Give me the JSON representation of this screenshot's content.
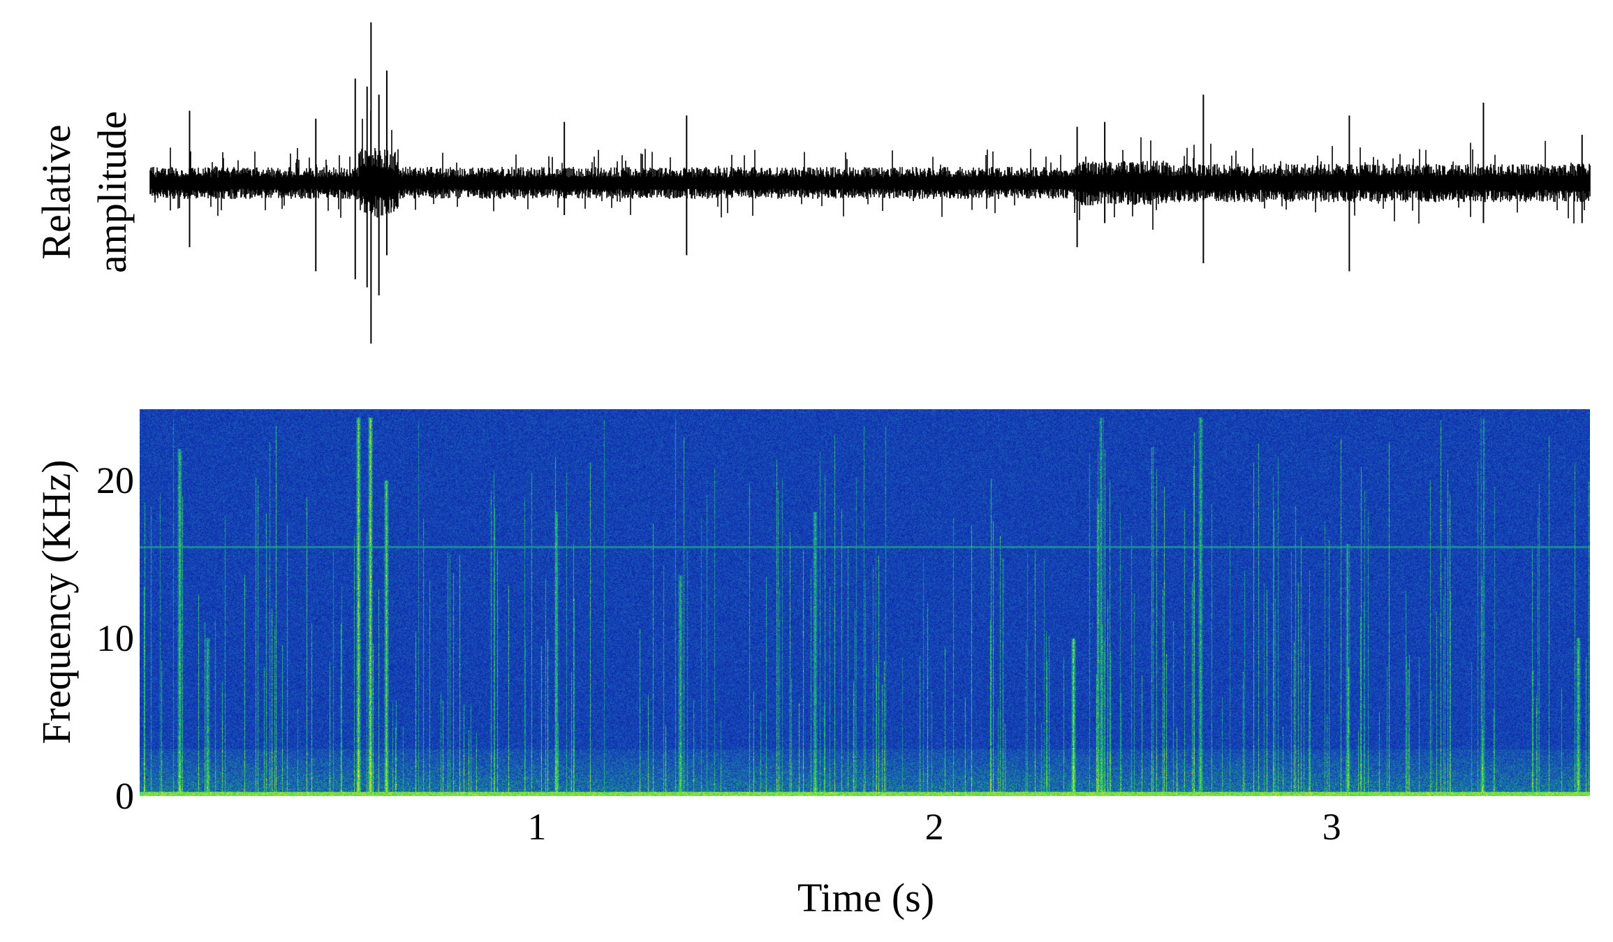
{
  "chart_data": [
    {
      "type": "line",
      "panel": "waveform",
      "ylabel_line1": "Relative",
      "ylabel_line2": "amplitude",
      "xlim": [
        0,
        3.65
      ],
      "baseline_color": "#000000",
      "segments": [
        {
          "t0": 0.0,
          "t1": 0.53,
          "amp": 0.1
        },
        {
          "t0": 0.53,
          "t1": 0.63,
          "amp": 0.22
        },
        {
          "t0": 0.63,
          "t1": 2.35,
          "amp": 0.1
        },
        {
          "t0": 2.35,
          "t1": 2.58,
          "amp": 0.14
        },
        {
          "t0": 2.58,
          "t1": 3.65,
          "amp": 0.12
        }
      ],
      "spikes": [
        {
          "t": 0.1,
          "up": 0.45,
          "down": -0.4
        },
        {
          "t": 0.42,
          "up": 0.4,
          "down": -0.55
        },
        {
          "t": 0.52,
          "up": 0.65,
          "down": -0.6
        },
        {
          "t": 0.55,
          "up": 0.6,
          "down": -0.65
        },
        {
          "t": 0.56,
          "up": 1.0,
          "down": -1.0
        },
        {
          "t": 0.58,
          "up": 0.55,
          "down": -0.7
        },
        {
          "t": 0.6,
          "up": 0.7,
          "down": -0.45
        },
        {
          "t": 1.05,
          "up": 0.38,
          "down": -0.2
        },
        {
          "t": 1.36,
          "up": 0.42,
          "down": -0.45
        },
        {
          "t": 2.35,
          "up": 0.35,
          "down": -0.4
        },
        {
          "t": 2.42,
          "up": 0.38,
          "down": -0.25
        },
        {
          "t": 2.67,
          "up": 0.55,
          "down": -0.5
        },
        {
          "t": 3.04,
          "up": 0.42,
          "down": -0.55
        },
        {
          "t": 3.38,
          "up": 0.5,
          "down": -0.25
        },
        {
          "t": 3.63,
          "up": 0.3,
          "down": -0.25
        }
      ]
    },
    {
      "type": "heatmap",
      "panel": "spectrogram",
      "xlabel": "Time (s)",
      "ylabel": "Frequency (KHz)",
      "xlim": [
        0,
        3.65
      ],
      "ylim": [
        0,
        24.5
      ],
      "x_ticks": [
        1,
        2,
        3
      ],
      "x_tick_labels": [
        "1",
        "2",
        "3"
      ],
      "y_ticks": [
        0,
        10,
        20
      ],
      "y_tick_labels": [
        "0",
        "10",
        "20"
      ],
      "colormap": [
        "#000a5a",
        "#0c2aa6",
        "#1a4fc0",
        "#18a080",
        "#33d45a",
        "#e9ea22"
      ],
      "background_color": "#0b2a9e",
      "hum_line_khz": 15.8,
      "low_band_khz": [
        0,
        3
      ],
      "bursts": [
        {
          "t": 0.1,
          "fmax": 22,
          "i": 0.7
        },
        {
          "t": 0.17,
          "fmax": 10,
          "i": 0.6
        },
        {
          "t": 0.55,
          "fmax": 24,
          "i": 0.9
        },
        {
          "t": 0.58,
          "fmax": 24,
          "i": 0.95
        },
        {
          "t": 0.62,
          "fmax": 20,
          "i": 0.8
        },
        {
          "t": 1.05,
          "fmax": 18,
          "i": 0.6
        },
        {
          "t": 1.36,
          "fmax": 14,
          "i": 0.6
        },
        {
          "t": 1.7,
          "fmax": 18,
          "i": 0.6
        },
        {
          "t": 2.35,
          "fmax": 10,
          "i": 0.85
        },
        {
          "t": 2.42,
          "fmax": 24,
          "i": 0.6
        },
        {
          "t": 2.67,
          "fmax": 24,
          "i": 0.6
        },
        {
          "t": 3.04,
          "fmax": 16,
          "i": 0.6
        },
        {
          "t": 3.38,
          "fmax": 24,
          "i": 0.6
        },
        {
          "t": 3.62,
          "fmax": 10,
          "i": 0.7
        }
      ]
    }
  ]
}
